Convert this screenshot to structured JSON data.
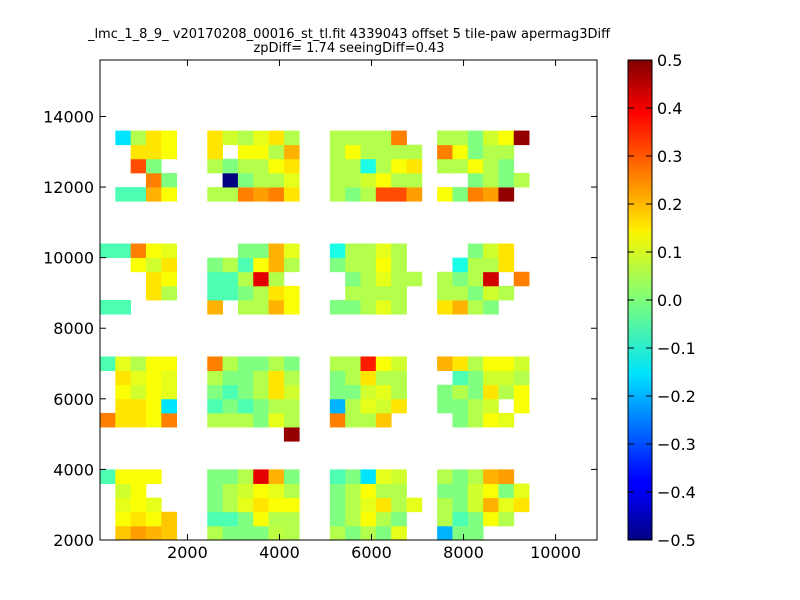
{
  "chart_data": {
    "type": "heatmap",
    "title": "_lmc_1_8_9_ v20170208_00016_st_tl.fit 4339043 offset 5 tile-paw apermag3Diff",
    "subtitle": "zpDiff= 1.74 seeingDiff=0.43",
    "xlabel": "",
    "ylabel": "",
    "xlim": [
      100,
      10900
    ],
    "ylim": [
      2000,
      15600
    ],
    "xticks": [
      2000,
      4000,
      6000,
      8000,
      10000
    ],
    "yticks": [
      2000,
      4000,
      6000,
      8000,
      10000,
      12000,
      14000
    ],
    "cell_size": [
      333,
      400
    ],
    "colormap": "jet",
    "colorbar": {
      "range": [
        -0.5,
        0.5
      ],
      "ticks": [
        "0.5",
        "0.4",
        "0.3",
        "0.2",
        "0.1",
        "0.0",
        "−0.1",
        "−0.2",
        "−0.3",
        "−0.4",
        "−0.5"
      ]
    },
    "grid_origin": [
      100,
      2000
    ],
    "grid": [
      [
        null,
        0.18,
        0.22,
        0.2,
        0.18,
        null,
        null,
        0.05,
        0.0,
        0.0,
        0.0,
        0.06,
        0.05,
        null,
        null,
        0.05,
        0.0,
        0.05,
        0.0,
        0.1,
        null,
        null,
        -0.2,
        0.0,
        0.0,
        null,
        null,
        null
      ],
      [
        null,
        0.12,
        0.15,
        0.12,
        0.18,
        null,
        null,
        -0.05,
        -0.05,
        0.0,
        0.12,
        0.05,
        0.05,
        null,
        null,
        0.0,
        0.05,
        0.12,
        0.05,
        0.0,
        null,
        null,
        0.05,
        -0.05,
        0.0,
        0.12,
        0.05,
        null
      ],
      [
        null,
        0.1,
        0.12,
        0.1,
        null,
        null,
        null,
        0.0,
        0.05,
        0.1,
        0.15,
        0.12,
        0.12,
        null,
        null,
        0.0,
        0.05,
        0.1,
        0.15,
        0.05,
        0.1,
        null,
        0.05,
        0.0,
        0.08,
        0.2,
        0.1,
        0.15
      ],
      [
        null,
        0.08,
        0.12,
        null,
        null,
        null,
        null,
        0.0,
        0.05,
        0.08,
        0.12,
        0.1,
        0.05,
        null,
        null,
        0.0,
        0.05,
        0.12,
        0.05,
        0.05,
        null,
        null,
        0.0,
        0.0,
        0.08,
        0.12,
        0.0,
        0.1
      ],
      [
        -0.05,
        0.12,
        0.12,
        0.12,
        null,
        null,
        null,
        0.0,
        0.0,
        0.05,
        0.4,
        0.2,
        0.0,
        null,
        null,
        -0.05,
        0.0,
        -0.15,
        0.1,
        0.08,
        null,
        null,
        0.05,
        0.0,
        0.05,
        0.2,
        0.22,
        null
      ],
      [
        null,
        null,
        null,
        null,
        null,
        null,
        null,
        null,
        null,
        null,
        null,
        null,
        null,
        null,
        null,
        null,
        null,
        null,
        null,
        null,
        null,
        null,
        null,
        null,
        null,
        null,
        null,
        null
      ],
      [
        null,
        null,
        null,
        null,
        null,
        null,
        null,
        null,
        null,
        null,
        null,
        null,
        null,
        null,
        null,
        null,
        null,
        null,
        null,
        null,
        null,
        null,
        null,
        null,
        null,
        null,
        null,
        null
      ],
      [
        null,
        null,
        null,
        null,
        null,
        null,
        null,
        null,
        null,
        null,
        null,
        null,
        0.48,
        null,
        null,
        null,
        null,
        null,
        null,
        null,
        null,
        null,
        null,
        null,
        null,
        null,
        null,
        null
      ],
      [
        0.25,
        0.15,
        0.15,
        0.12,
        0.25,
        null,
        null,
        0.05,
        0.05,
        0.05,
        0.0,
        0.1,
        0.05,
        null,
        null,
        0.25,
        0.05,
        0.05,
        0.18,
        null,
        null,
        null,
        null,
        0.0,
        0.05,
        0.12,
        0.1,
        null
      ],
      [
        null,
        0.15,
        0.15,
        0.12,
        -0.15,
        null,
        null,
        -0.05,
        0.0,
        -0.05,
        0.0,
        0.05,
        0.05,
        null,
        null,
        -0.2,
        0.05,
        0.1,
        0.08,
        0.15,
        null,
        null,
        0.0,
        0.0,
        0.05,
        0.08,
        null,
        0.12
      ],
      [
        null,
        0.12,
        0.08,
        0.12,
        0.1,
        null,
        null,
        0.0,
        -0.05,
        0.0,
        0.05,
        0.15,
        0.08,
        null,
        null,
        0.0,
        0.0,
        0.08,
        0.1,
        0.05,
        null,
        null,
        0.0,
        0.05,
        0.0,
        0.15,
        0.05,
        0.12
      ],
      [
        null,
        0.15,
        0.1,
        0.12,
        0.1,
        null,
        null,
        0.05,
        0.0,
        0.0,
        0.05,
        0.15,
        0.05,
        null,
        null,
        0.0,
        0.05,
        0.15,
        0.05,
        0.05,
        null,
        null,
        null,
        -0.05,
        0.0,
        0.08,
        0.08,
        0.05
      ],
      [
        -0.05,
        0.1,
        0.05,
        0.12,
        0.12,
        null,
        null,
        0.25,
        0.05,
        0.0,
        0.0,
        0.05,
        0.0,
        null,
        null,
        0.05,
        0.05,
        0.35,
        0.12,
        0.08,
        null,
        null,
        0.2,
        0.15,
        0.05,
        0.12,
        0.12,
        0.08
      ],
      [
        null,
        null,
        null,
        null,
        null,
        null,
        null,
        null,
        null,
        null,
        null,
        null,
        null,
        null,
        null,
        null,
        null,
        null,
        null,
        null,
        null,
        null,
        null,
        null,
        null,
        null,
        null,
        null
      ],
      [
        null,
        null,
        null,
        null,
        null,
        null,
        null,
        null,
        null,
        null,
        null,
        null,
        null,
        null,
        null,
        null,
        null,
        null,
        null,
        null,
        null,
        null,
        null,
        null,
        null,
        null,
        null,
        null
      ],
      [
        null,
        null,
        null,
        null,
        null,
        null,
        null,
        null,
        null,
        null,
        null,
        null,
        null,
        null,
        null,
        null,
        null,
        null,
        null,
        null,
        null,
        null,
        null,
        null,
        null,
        null,
        null,
        null
      ],
      [
        -0.05,
        -0.05,
        null,
        null,
        null,
        null,
        null,
        0.2,
        null,
        0.05,
        0.05,
        0.2,
        0.12,
        null,
        null,
        0.0,
        0.0,
        0.05,
        0.1,
        0.05,
        null,
        null,
        0.15,
        0.2,
        0.05,
        0.0,
        null,
        null
      ],
      [
        null,
        null,
        null,
        0.15,
        0.05,
        null,
        null,
        -0.05,
        -0.05,
        0.0,
        0.05,
        0.15,
        0.12,
        null,
        null,
        null,
        0.05,
        0.05,
        0.05,
        0.05,
        null,
        null,
        0.05,
        0.05,
        0.0,
        0.08,
        0.05,
        null
      ],
      [
        null,
        null,
        null,
        0.15,
        0.12,
        null,
        null,
        -0.05,
        -0.05,
        0.05,
        0.4,
        0.05,
        null,
        null,
        null,
        null,
        0.0,
        0.05,
        0.1,
        0.05,
        0.05,
        null,
        0.05,
        0.0,
        0.05,
        0.42,
        null,
        0.25
      ],
      [
        null,
        null,
        0.12,
        0.08,
        0.15,
        null,
        null,
        0.0,
        0.05,
        -0.05,
        0.12,
        0.2,
        0.05,
        null,
        null,
        0.0,
        0.05,
        0.05,
        0.12,
        0.05,
        null,
        null,
        null,
        -0.1,
        0.05,
        0.05,
        0.15,
        null
      ],
      [
        -0.05,
        -0.05,
        0.25,
        0.12,
        0.1,
        null,
        null,
        null,
        null,
        0.0,
        0.0,
        0.2,
        0.1,
        null,
        null,
        -0.1,
        0.05,
        0.05,
        0.1,
        0.05,
        null,
        null,
        null,
        null,
        0.0,
        0.08,
        0.15,
        null
      ],
      [
        null,
        null,
        null,
        null,
        null,
        null,
        null,
        null,
        null,
        null,
        null,
        null,
        null,
        null,
        null,
        null,
        null,
        null,
        null,
        null,
        null,
        null,
        null,
        null,
        null,
        null,
        null,
        null
      ],
      [
        null,
        null,
        null,
        null,
        null,
        null,
        null,
        null,
        null,
        null,
        null,
        null,
        null,
        null,
        null,
        null,
        null,
        null,
        null,
        null,
        null,
        null,
        null,
        null,
        null,
        null,
        null,
        null
      ],
      [
        null,
        null,
        null,
        null,
        null,
        null,
        null,
        null,
        null,
        null,
        null,
        null,
        null,
        null,
        null,
        null,
        null,
        null,
        null,
        null,
        null,
        null,
        null,
        null,
        null,
        null,
        null,
        null
      ],
      [
        null,
        -0.05,
        -0.05,
        0.2,
        0.12,
        null,
        null,
        0.05,
        0.05,
        0.25,
        0.22,
        0.25,
        0.15,
        null,
        null,
        0.05,
        0.0,
        0.05,
        0.3,
        0.3,
        0.22,
        null,
        0.12,
        0.0,
        0.25,
        0.22,
        0.48,
        null
      ],
      [
        null,
        null,
        null,
        0.25,
        0.0,
        null,
        null,
        null,
        -0.5,
        0.0,
        0.05,
        0.05,
        0.1,
        null,
        null,
        0.05,
        0.05,
        0.08,
        0.12,
        0.05,
        0.05,
        null,
        null,
        null,
        0.0,
        0.05,
        0.0,
        0.05
      ],
      [
        null,
        null,
        0.3,
        0.0,
        null,
        null,
        null,
        0.05,
        0.0,
        0.05,
        0.05,
        0.12,
        0.15,
        null,
        null,
        0.05,
        0.05,
        -0.1,
        0.05,
        0.12,
        0.15,
        null,
        0.05,
        0.05,
        0.12,
        0.05,
        0.0,
        null
      ],
      [
        null,
        null,
        0.15,
        0.15,
        0.12,
        null,
        null,
        0.15,
        null,
        0.12,
        0.12,
        0.05,
        0.2,
        null,
        null,
        0.05,
        0.12,
        0.05,
        0.05,
        0.05,
        0.05,
        null,
        0.25,
        0.12,
        0.0,
        0.05,
        0.05,
        null
      ],
      [
        null,
        -0.15,
        0.05,
        0.15,
        0.12,
        null,
        null,
        0.15,
        0.08,
        0.05,
        0.1,
        0.15,
        0.05,
        null,
        null,
        0.05,
        0.05,
        0.05,
        0.05,
        0.25,
        null,
        null,
        0.05,
        0.05,
        0.0,
        0.08,
        0.12,
        0.48
      ]
    ]
  }
}
